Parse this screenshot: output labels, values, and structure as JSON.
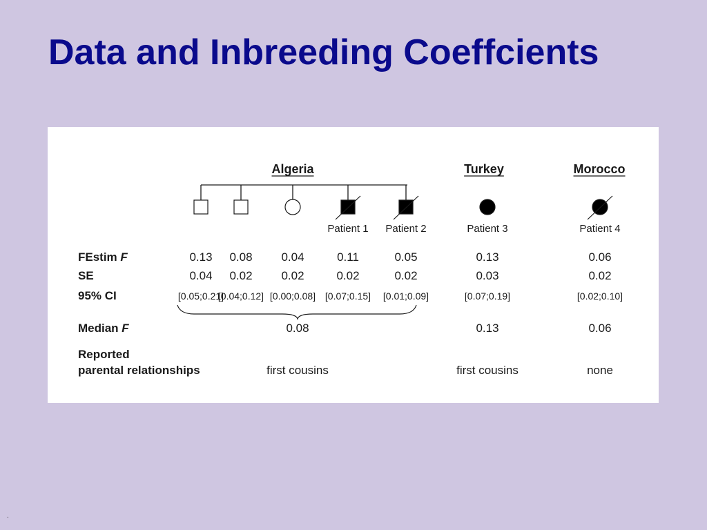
{
  "slide": {
    "title": "Data and Inbreeding Coeffcients",
    "footer_mark": "."
  },
  "figure": {
    "countries": {
      "algeria": "Algeria",
      "turkey": "Turkey",
      "morocco": "Morocco"
    },
    "individuals": [
      {
        "id": "alg-1",
        "shape": "square",
        "affected": false,
        "deceased": false,
        "label": "",
        "F": "0.13",
        "SE": "0.04",
        "CI": "[0.05;0.21]"
      },
      {
        "id": "alg-2",
        "shape": "square",
        "affected": false,
        "deceased": false,
        "label": "",
        "F": "0.08",
        "SE": "0.02",
        "CI": "[0.04;0.12]"
      },
      {
        "id": "alg-3",
        "shape": "circle",
        "affected": false,
        "deceased": false,
        "label": "",
        "F": "0.04",
        "SE": "0.02",
        "CI": "[0.00;0.08]"
      },
      {
        "id": "alg-4",
        "shape": "square",
        "affected": true,
        "deceased": true,
        "label": "Patient 1",
        "F": "0.11",
        "SE": "0.02",
        "CI": "[0.07;0.15]"
      },
      {
        "id": "alg-5",
        "shape": "square",
        "affected": true,
        "deceased": true,
        "label": "Patient 2",
        "F": "0.05",
        "SE": "0.02",
        "CI": "[0.01;0.09]"
      },
      {
        "id": "tur-1",
        "shape": "circle",
        "affected": true,
        "deceased": false,
        "label": "Patient 3",
        "F": "0.13",
        "SE": "0.03",
        "CI": "[0.07;0.19]"
      },
      {
        "id": "mor-1",
        "shape": "circle",
        "affected": true,
        "deceased": true,
        "label": "Patient 4",
        "F": "0.06",
        "SE": "0.02",
        "CI": "[0.02;0.10]"
      }
    ],
    "row_labels": {
      "festim": "FEstim ",
      "festim_italic": "F",
      "se": "SE",
      "ci": "95% CI",
      "median": "Median ",
      "median_italic": "F",
      "reported_line1": "Reported",
      "reported_line2": "parental relationships"
    },
    "median_F": {
      "algeria": "0.08",
      "turkey": "0.13",
      "morocco": "0.06"
    },
    "reported_relationships": {
      "algeria": "first cousins",
      "turkey": "first cousins",
      "morocco": "none"
    }
  }
}
